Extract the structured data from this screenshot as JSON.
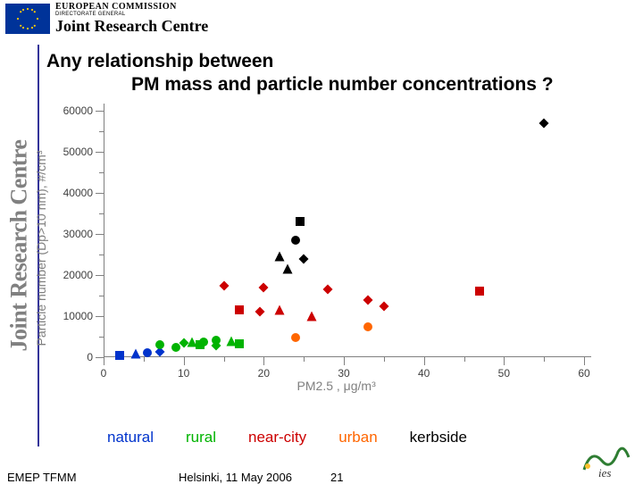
{
  "header": {
    "ec": "EUROPEAN COMMISSION",
    "dg": "DIRECTORATE GENERAL",
    "jrc": "Joint Research Centre"
  },
  "sidebar": {
    "label": "Joint Research Centre"
  },
  "title": {
    "line1": "Any relationship between",
    "line2": "PM mass and particle number concentrations ?"
  },
  "chart": {
    "type": "scatter",
    "xlabel": "PM2.5 , μg/m³",
    "ylabel": "Particle number (Dp>10 nm), #/cm³",
    "xlim": [
      0,
      60
    ],
    "ylim": [
      0,
      60000
    ],
    "xticks": [
      0,
      10,
      20,
      30,
      40,
      50,
      60
    ],
    "yticks": [
      0,
      10000,
      20000,
      30000,
      40000,
      50000,
      60000
    ],
    "yticklabels": [
      "0",
      "10000",
      "20000",
      "30000",
      "40000",
      "50000",
      "60000"
    ],
    "background_color": "#ffffff",
    "axis_color": "#808080",
    "tick_label_fontsize": 12,
    "axis_label_fontsize": 14,
    "axis_label_color": "#808080",
    "marker_size": 11,
    "categories": {
      "natural": {
        "color": "#0033cc",
        "label": "natural"
      },
      "rural": {
        "color": "#00b300",
        "label": "rural"
      },
      "near_city": {
        "color": "#cc0000",
        "label": "near-city"
      },
      "urban": {
        "color": "#ff6600",
        "label": "urban"
      },
      "kerbside": {
        "color": "#000000",
        "label": "kerbside"
      }
    },
    "points": [
      {
        "x": 2,
        "y": 500,
        "cat": "natural",
        "shape": "square"
      },
      {
        "x": 4,
        "y": 900,
        "cat": "natural",
        "shape": "triangle"
      },
      {
        "x": 5.5,
        "y": 1100,
        "cat": "natural",
        "shape": "circle"
      },
      {
        "x": 7,
        "y": 1200,
        "cat": "natural",
        "shape": "diamond"
      },
      {
        "x": 7,
        "y": 3100,
        "cat": "rural",
        "shape": "circle"
      },
      {
        "x": 9,
        "y": 2500,
        "cat": "rural",
        "shape": "circle"
      },
      {
        "x": 10,
        "y": 3400,
        "cat": "rural",
        "shape": "diamond"
      },
      {
        "x": 11,
        "y": 3700,
        "cat": "rural",
        "shape": "triangle"
      },
      {
        "x": 12,
        "y": 3000,
        "cat": "rural",
        "shape": "square"
      },
      {
        "x": 12.5,
        "y": 3800,
        "cat": "rural",
        "shape": "circle"
      },
      {
        "x": 14,
        "y": 2900,
        "cat": "rural",
        "shape": "diamond"
      },
      {
        "x": 14,
        "y": 4100,
        "cat": "rural",
        "shape": "circle"
      },
      {
        "x": 16,
        "y": 3900,
        "cat": "rural",
        "shape": "triangle"
      },
      {
        "x": 17,
        "y": 3200,
        "cat": "rural",
        "shape": "square"
      },
      {
        "x": 15,
        "y": 17500,
        "cat": "near_city",
        "shape": "diamond"
      },
      {
        "x": 17,
        "y": 11500,
        "cat": "near_city",
        "shape": "square"
      },
      {
        "x": 19.5,
        "y": 11000,
        "cat": "near_city",
        "shape": "diamond"
      },
      {
        "x": 20,
        "y": 17000,
        "cat": "near_city",
        "shape": "diamond"
      },
      {
        "x": 22,
        "y": 11500,
        "cat": "near_city",
        "shape": "triangle"
      },
      {
        "x": 26,
        "y": 10000,
        "cat": "near_city",
        "shape": "triangle"
      },
      {
        "x": 28,
        "y": 16500,
        "cat": "near_city",
        "shape": "diamond"
      },
      {
        "x": 33,
        "y": 14000,
        "cat": "near_city",
        "shape": "diamond"
      },
      {
        "x": 35,
        "y": 12500,
        "cat": "near_city",
        "shape": "diamond"
      },
      {
        "x": 47,
        "y": 16000,
        "cat": "near_city",
        "shape": "square"
      },
      {
        "x": 24,
        "y": 4800,
        "cat": "urban",
        "shape": "circle"
      },
      {
        "x": 33,
        "y": 7500,
        "cat": "urban",
        "shape": "circle"
      },
      {
        "x": 22,
        "y": 24500,
        "cat": "kerbside",
        "shape": "triangle"
      },
      {
        "x": 23,
        "y": 21500,
        "cat": "kerbside",
        "shape": "triangle"
      },
      {
        "x": 24,
        "y": 28500,
        "cat": "kerbside",
        "shape": "circle"
      },
      {
        "x": 24.5,
        "y": 33000,
        "cat": "kerbside",
        "shape": "square"
      },
      {
        "x": 25,
        "y": 24000,
        "cat": "kerbside",
        "shape": "diamond"
      },
      {
        "x": 55,
        "y": 57000,
        "cat": "kerbside",
        "shape": "diamond"
      }
    ]
  },
  "legend": {
    "fontsize": 17,
    "items": [
      {
        "key": "natural",
        "color": "#0033cc"
      },
      {
        "key": "rural",
        "color": "#00b300"
      },
      {
        "key": "near_city",
        "color": "#cc0000"
      },
      {
        "key": "urban",
        "color": "#ff6600"
      },
      {
        "key": "kerbside",
        "color": "#000000"
      }
    ]
  },
  "footer": {
    "left": "EMEP TFMM",
    "mid": "Helsinki, 11 May 2006",
    "page": "21"
  }
}
